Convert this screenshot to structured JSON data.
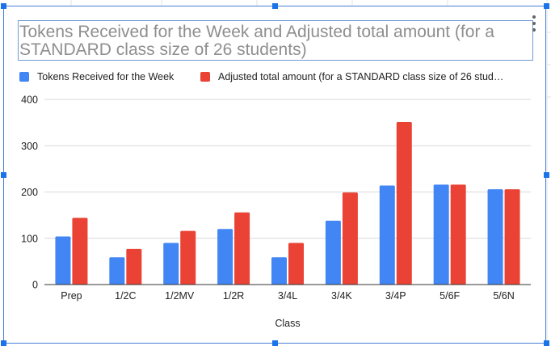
{
  "chart_data": {
    "type": "bar",
    "title": "Tokens Received for the Week and Adjusted total amount (for a STANDARD class size of 26 students)",
    "xlabel": "Class",
    "ylabel": "",
    "categories": [
      "Prep",
      "1/2C",
      "1/2MV",
      "1/2R",
      "3/4L",
      "3/4K",
      "3/4P",
      "5/6F",
      "5/6N"
    ],
    "series": [
      {
        "name": "Tokens Received for the Week",
        "color": "#4285f4",
        "values": [
          104,
          59,
          90,
          120,
          59,
          138,
          214,
          216,
          206
        ]
      },
      {
        "name": "Adjusted total amount (for a STANDARD class size of 26 stud…",
        "color": "#ea4335",
        "values": [
          144,
          77,
          116,
          156,
          90,
          199,
          351,
          216,
          206
        ]
      }
    ],
    "ylim": [
      0,
      400
    ],
    "yticks": [
      "0",
      "100",
      "200",
      "300",
      "400"
    ],
    "grid": true,
    "legend_position": "top-left"
  }
}
